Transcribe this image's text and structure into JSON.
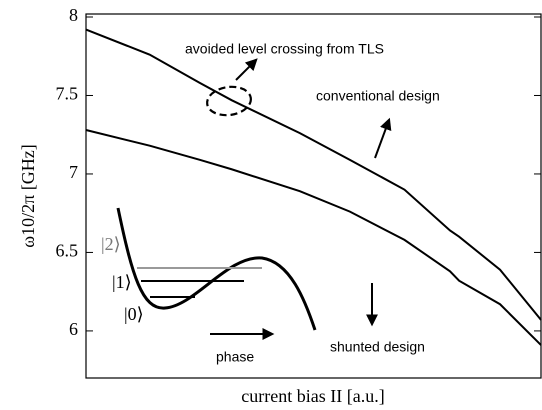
{
  "chart_data": {
    "type": "line",
    "ylabel": "ω10/2π [GHz]",
    "xlabel": "current bias II [a.u.]",
    "x": [
      0,
      0.14,
      0.25,
      0.32,
      0.47,
      0.58,
      0.7,
      0.8,
      0.82,
      0.91,
      1.0
    ],
    "series": [
      {
        "name": "conventional design",
        "color": "#000000",
        "values": [
          7.92,
          7.76,
          7.58,
          7.47,
          7.26,
          7.09,
          6.9,
          6.64,
          6.6,
          6.39,
          6.07
        ]
      },
      {
        "name": "shunted design",
        "color": "#000000",
        "values": [
          7.28,
          7.18,
          7.09,
          7.03,
          6.89,
          6.76,
          6.58,
          6.38,
          6.32,
          6.17,
          5.91
        ]
      }
    ],
    "xlim": [
      0,
      1
    ],
    "ylim": [
      5.7,
      8.0
    ],
    "yticks": [
      6,
      6.5,
      7,
      7.5,
      8
    ],
    "annotations": [
      "avoided level crossing from TLS",
      "phase"
    ],
    "inset_levels": [
      "|2⟩",
      "|1⟩",
      "|0⟩"
    ]
  }
}
